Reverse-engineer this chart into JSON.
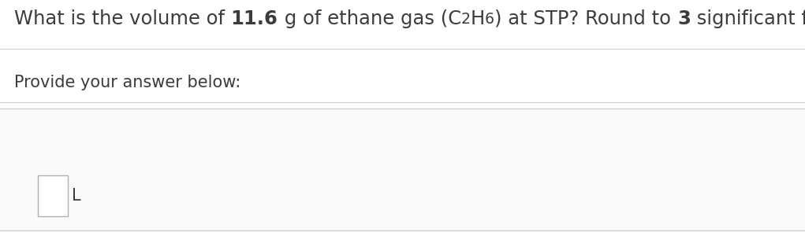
{
  "question_parts": [
    {
      "text": "What is the volume of ",
      "bold": false
    },
    {
      "text": "11.6",
      "bold": true
    },
    {
      "text": " g of ethane gas (C",
      "bold": false
    },
    {
      "text": "2",
      "bold": false,
      "sub": true
    },
    {
      "text": "H",
      "bold": false
    },
    {
      "text": "6",
      "bold": false,
      "sub": true
    },
    {
      "text": ") at STP? Round to ",
      "bold": false
    },
    {
      "text": "3",
      "bold": true
    },
    {
      "text": " significant figures.",
      "bold": false
    }
  ],
  "line2": "Provide your answer below:",
  "unit_label": "L",
  "bg_color": "#ffffff",
  "text_color": "#3c3c3c",
  "sep_color": "#cccccc",
  "box_border_color": "#b0b0b0",
  "bottom_bg_color": "#fafafa",
  "bottom_border_color": "#d0d0d0",
  "font_size_main": 17.5,
  "font_size_sub": 15,
  "fig_width": 10.21,
  "fig_height": 2.95,
  "dpi": 100
}
